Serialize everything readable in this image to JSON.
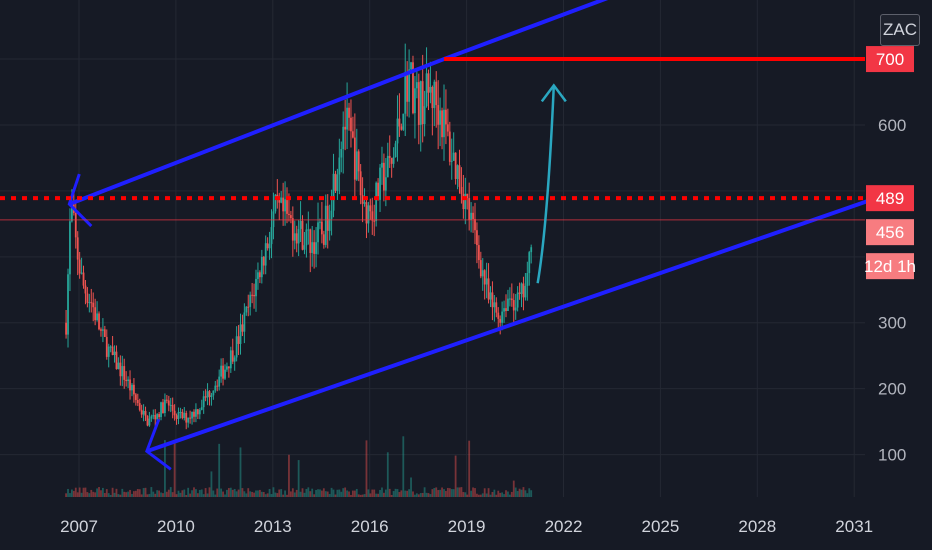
{
  "symbol": "ZAC",
  "colors": {
    "background": "#161a25",
    "grid": "#242833",
    "up": "#26a69a",
    "down": "#ef5350",
    "trendline": "#1f1fff",
    "horizontal": "#ff0000",
    "projection_arrow": "#2aa7c0",
    "price_tag": "#f23645",
    "price_tag_light": "#f77c80"
  },
  "chart_data": {
    "type": "candlestick",
    "x_ticks": [
      "2007",
      "2010",
      "2013",
      "2016",
      "2019",
      "2022",
      "2025",
      "2028",
      "2031"
    ],
    "y_ticks": [
      100,
      200,
      300,
      600
    ],
    "y_range": [
      35,
      710
    ],
    "x_range": [
      2006.3,
      2031.5
    ],
    "grid": true,
    "price_tags": [
      {
        "label": "700",
        "value": 700
      },
      {
        "label": "489",
        "value": 489
      },
      {
        "label": "456",
        "value": 456
      },
      {
        "label": "12d 1h",
        "value": 456
      }
    ],
    "price_path": [
      [
        2006.6,
        300
      ],
      [
        2006.75,
        480
      ],
      [
        2006.9,
        420
      ],
      [
        2007.1,
        360
      ],
      [
        2007.4,
        330
      ],
      [
        2007.7,
        280
      ],
      [
        2008.0,
        250
      ],
      [
        2008.4,
        220
      ],
      [
        2008.8,
        180
      ],
      [
        2009.1,
        150
      ],
      [
        2009.4,
        160
      ],
      [
        2009.7,
        180
      ],
      [
        2010.0,
        160
      ],
      [
        2010.3,
        155
      ],
      [
        2010.7,
        170
      ],
      [
        2011.1,
        200
      ],
      [
        2011.5,
        230
      ],
      [
        2011.9,
        270
      ],
      [
        2012.3,
        330
      ],
      [
        2012.7,
        400
      ],
      [
        2013.1,
        470
      ],
      [
        2013.4,
        460
      ],
      [
        2013.8,
        440
      ],
      [
        2014.2,
        420
      ],
      [
        2014.6,
        440
      ],
      [
        2014.9,
        520
      ],
      [
        2015.2,
        610
      ],
      [
        2015.5,
        560
      ],
      [
        2015.8,
        480
      ],
      [
        2016.1,
        470
      ],
      [
        2016.4,
        520
      ],
      [
        2016.7,
        540
      ],
      [
        2017.0,
        630
      ],
      [
        2017.2,
        680
      ],
      [
        2017.5,
        630
      ],
      [
        2017.9,
        650
      ],
      [
        2018.2,
        620
      ],
      [
        2018.5,
        560
      ],
      [
        2018.8,
        520
      ],
      [
        2019.1,
        460
      ],
      [
        2019.4,
        400
      ],
      [
        2019.7,
        330
      ],
      [
        2020.0,
        310
      ],
      [
        2020.3,
        340
      ],
      [
        2020.6,
        330
      ],
      [
        2020.9,
        360
      ],
      [
        2021.05,
        480
      ]
    ],
    "annotations": {
      "upper_trendline": [
        [
          2006.7,
          480
        ],
        [
          2018.3,
          700
        ],
        [
          2023.5,
          795
        ]
      ],
      "lower_trendline": [
        [
          2009.1,
          105
        ],
        [
          2031.5,
          486
        ]
      ],
      "horizontal_red_line": {
        "value": 700,
        "from_x": 2018.3
      },
      "dotted_red_line": {
        "value": 489
      },
      "thin_red_line": {
        "value": 456
      },
      "projection_arrow": [
        [
          2021.2,
          360
        ],
        [
          2021.7,
          660
        ]
      ]
    }
  }
}
